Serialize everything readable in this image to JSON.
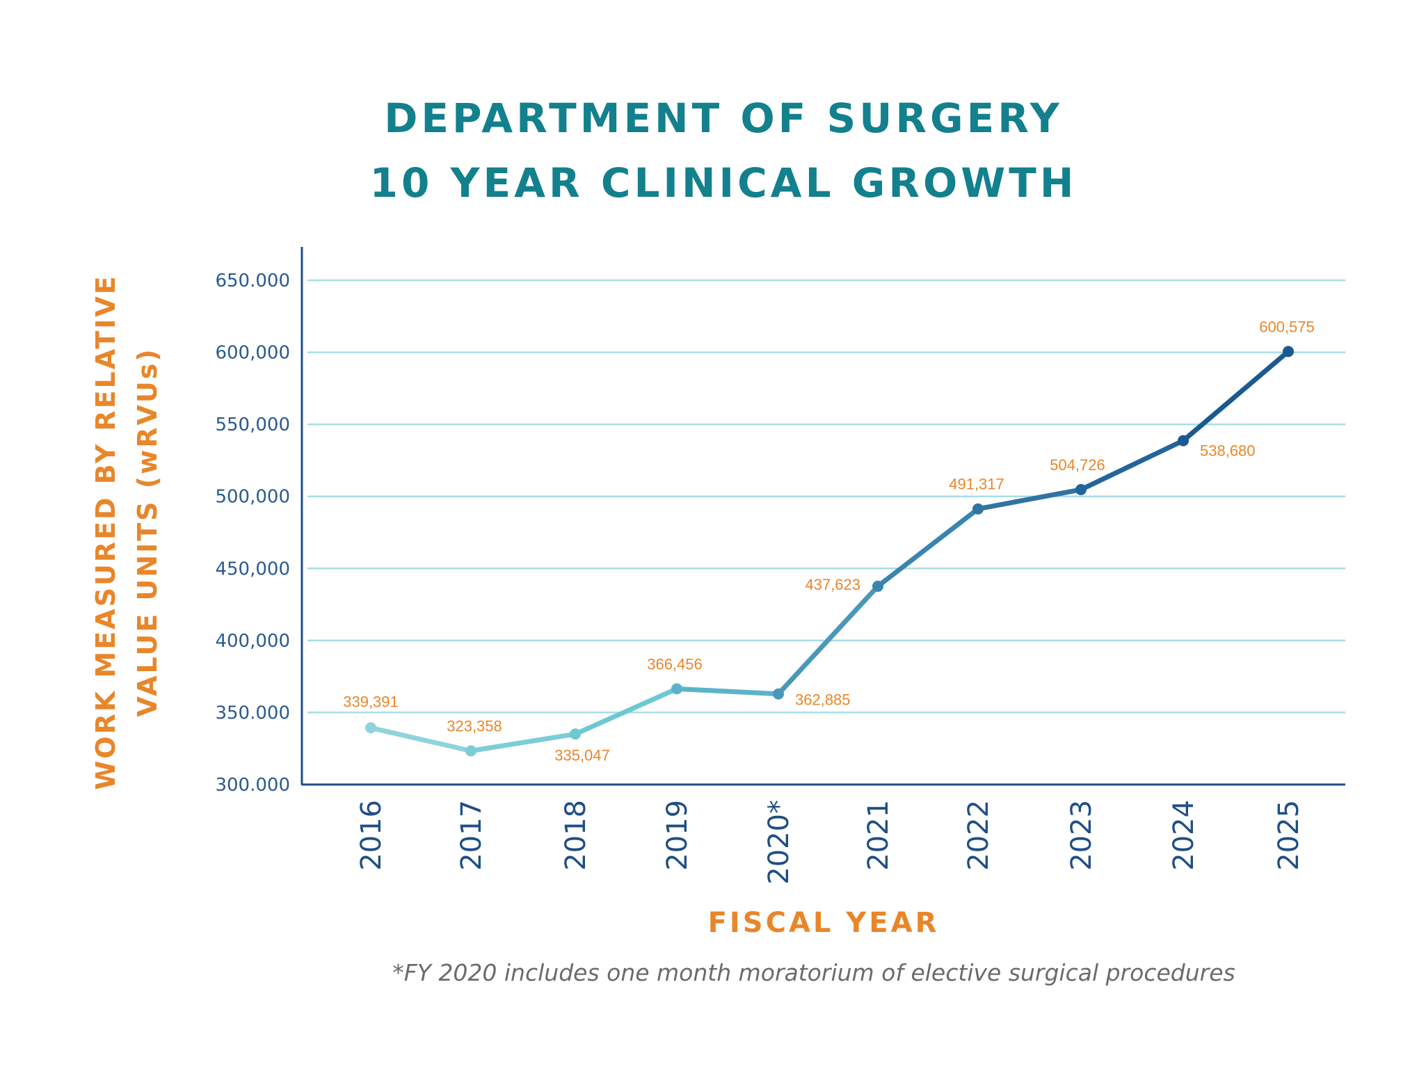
{
  "chart_data": {
    "type": "line",
    "title": [
      "DEPARTMENT OF SURGERY",
      "10 YEAR CLINICAL GROWTH"
    ],
    "xlabel": "FISCAL YEAR",
    "ylabel": [
      "WORK MEASURED BY RELATIVE",
      "VALUE UNITS (wRVUs)"
    ],
    "categories": [
      "2016",
      "2017",
      "2018",
      "2019",
      "2020*",
      "2021",
      "2022",
      "2023",
      "2024",
      "2025"
    ],
    "values": [
      339391,
      323358,
      335047,
      366456,
      362885,
      437623,
      491317,
      504726,
      538680,
      600575
    ],
    "data_labels": [
      "339,391",
      "323,358",
      "335,047",
      "366,456",
      "362,885",
      "437,623",
      "491,317",
      "504,726",
      "538,680",
      "600,575"
    ],
    "ylim": [
      300000,
      650000
    ],
    "yticks": [
      300000,
      350000,
      400000,
      450000,
      500000,
      550000,
      600000,
      650000
    ],
    "ytick_labels": [
      "300.000",
      "350.000",
      "400,000",
      "450,000",
      "500,000",
      "550,000",
      "600,000",
      "650.000"
    ],
    "grid": true,
    "line_colors": [
      "#8fd3dc",
      "#7ccdd6",
      "#6cc8d3",
      "#5bb3c8",
      "#4a98b8",
      "#3a85ad",
      "#2f74a3",
      "#23649a",
      "#1a5a90"
    ],
    "footnote": "*FY 2020 includes one month moratorium of elective surgical procedures"
  }
}
